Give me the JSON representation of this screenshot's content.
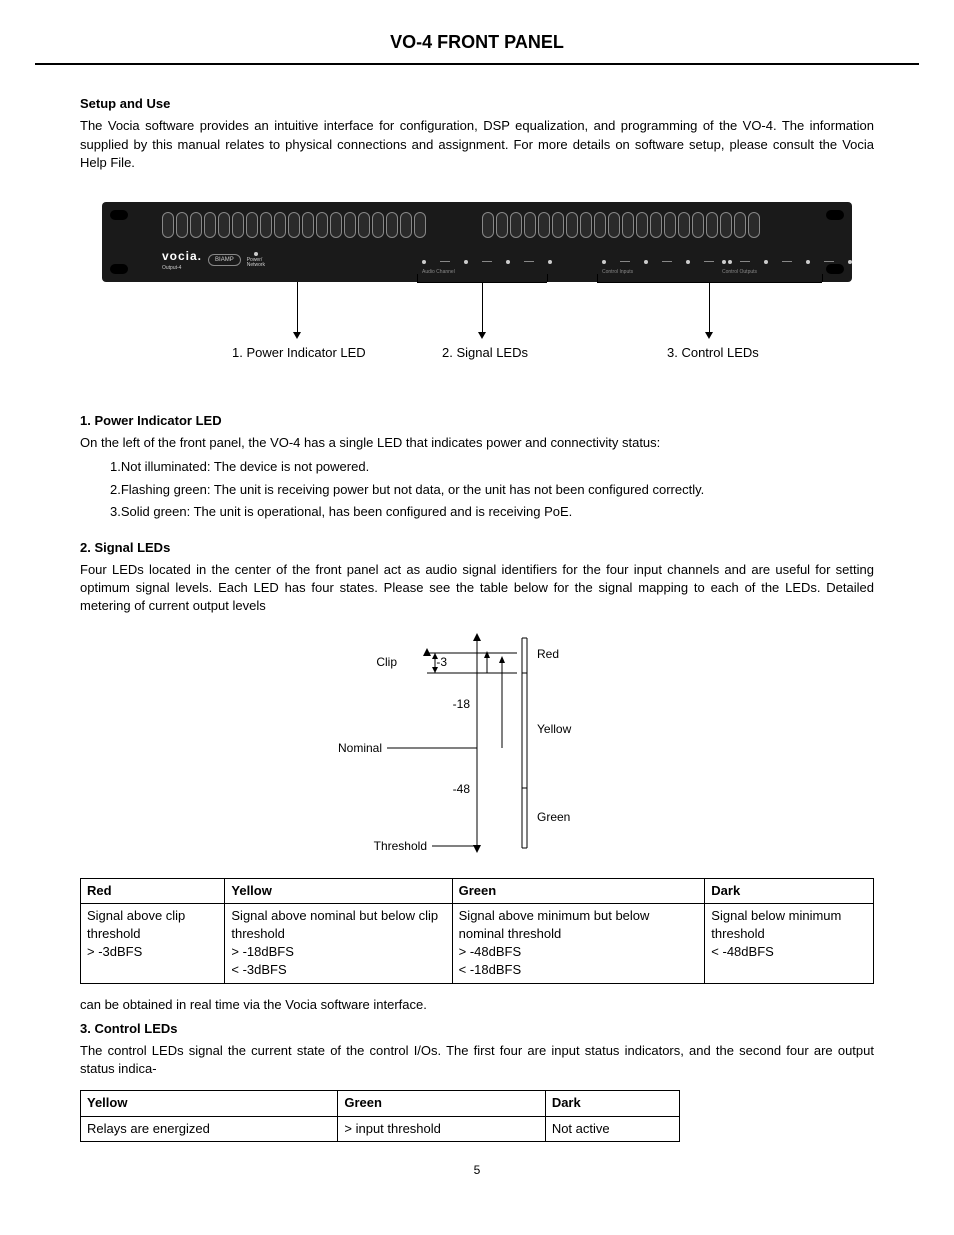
{
  "page": {
    "title": "VO-4 FRONT PANEL",
    "number": "5"
  },
  "setup": {
    "heading": "Setup and Use",
    "paragraph": "The Vocia software provides an intuitive interface for configuration, DSP equalization, and programming of the VO-4. The information supplied by this manual relates to physical connections and assignment. For more details on software setup, please consult the Vocia Help File."
  },
  "device": {
    "logo": "vocia.",
    "sublabel": "Output-4",
    "brand": "BIAMP",
    "net_label": "Power/\nNetwork",
    "section_labels": {
      "audio": "Audio Channel",
      "ctrl_in": "Control Inputs",
      "ctrl_out": "Control Outputs"
    },
    "callouts": [
      "1. Power Indicator LED",
      "2. Signal LEDs",
      "3. Control LEDs"
    ]
  },
  "section1": {
    "heading": "1. Power Indicator LED",
    "intro": "On the left of the front panel, the VO-4 has a single LED that indicates power and connectivity status:",
    "items": [
      "1.Not illuminated: The device is not powered.",
      "2.Flashing green: The unit is receiving power but not data, or the unit has not been configured correctly.",
      "3.Solid green: The unit is operational, has been configured and is receiving PoE."
    ]
  },
  "section2": {
    "heading": "2. Signal LEDs",
    "intro": "Four LEDs located in the center of the front panel act as audio signal identifiers for the four input channels and are useful for setting optimum signal levels. Each LED has four states. Please see the table below for the signal mapping to each of the LEDs. Detailed metering of current output levels",
    "diagram": {
      "left_labels": {
        "clip": "Clip",
        "nominal": "Nominal",
        "threshold": "Threshold"
      },
      "ticks": {
        "t3": "-3",
        "t18": "-18",
        "t48": "-48"
      },
      "right_labels": {
        "red": "Red",
        "yellow": "Yellow",
        "green": "Green"
      }
    },
    "table": {
      "headers": [
        "Red",
        "Yellow",
        "Green",
        "Dark"
      ],
      "rows": [
        [
          "Signal above clip threshold\n> -3dBFS",
          "Signal above nominal but below clip threshold\n> -18dBFS\n< -3dBFS",
          "Signal above minimum but below nominal threshold\n> -48dBFS\n< -18dBFS",
          "Signal below minimum threshold\n< -48dBFS"
        ]
      ]
    },
    "post_paragraph": "can be obtained in real time via the Vocia software interface."
  },
  "section3": {
    "heading": "3. Control LEDs",
    "intro": "The control LEDs signal the current state of the control I/Os. The first four are input status indicators, and the second four are output status indica-",
    "table": {
      "headers": [
        "Yellow",
        "Green",
        "Dark"
      ],
      "rows": [
        [
          "Relays are energized",
          "> input threshold",
          "Not active"
        ]
      ]
    }
  },
  "colors": {
    "text": "#000000",
    "background": "#ffffff",
    "device_bg": "#1a1a1a",
    "border": "#000000"
  }
}
